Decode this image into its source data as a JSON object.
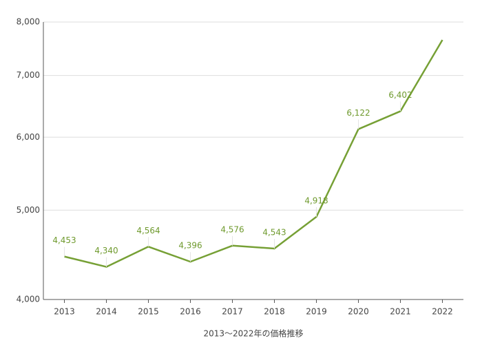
{
  "chart_data": {
    "type": "line",
    "x_label": "2013～2022年の価格推移",
    "categories": [
      "2013",
      "2014",
      "2015",
      "2016",
      "2017",
      "2018",
      "2019",
      "2020",
      "2021",
      "2022"
    ],
    "series": [
      {
        "name": null,
        "color": "#76a035",
        "values": [
          4453,
          4340,
          4564,
          4396,
          4576,
          4543,
          4918,
          6122,
          6402,
          7650
        ],
        "value_labels": [
          "4,453",
          "4,340",
          "4,564",
          "4,396",
          "4,576",
          "4,543",
          "4,918",
          "6,122",
          "6,402",
          null
        ]
      }
    ],
    "log_scale": true,
    "ylim": [
      4000,
      8000
    ],
    "yticks": [
      {
        "value": 4000,
        "label": "4,000"
      },
      {
        "value": 5000,
        "label": "5,000"
      },
      {
        "value": 6000,
        "label": "6,000"
      },
      {
        "value": 7000,
        "label": "7,000"
      },
      {
        "value": 8000,
        "label": "8,000"
      }
    ],
    "grid": true
  }
}
